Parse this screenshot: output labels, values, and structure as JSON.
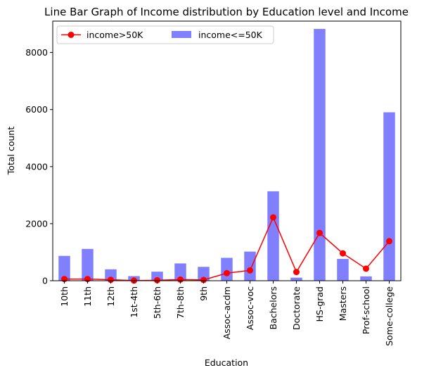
{
  "chart_data": {
    "type": "bar",
    "title": "Line Bar Graph of Income distribution by Education level and Income",
    "xlabel": "Education",
    "ylabel": "Total count",
    "ylim": [
      0,
      9100
    ],
    "yticks": [
      0,
      2000,
      4000,
      6000,
      8000
    ],
    "grid": false,
    "legend_position": "top-left",
    "categories": [
      "10th",
      "11th",
      "12th",
      "1st-4th",
      "5th-6th",
      "7th-8th",
      "9th",
      "Assoc-acdm",
      "Assoc-voc",
      "Bachelors",
      "Doctorate",
      "HS-grad",
      "Masters",
      "Prof-school",
      "Some-college"
    ],
    "series": [
      {
        "name": "income>50K",
        "type": "line",
        "color": "#ff0000",
        "marker": "circle",
        "values": [
          60,
          60,
          33,
          6,
          16,
          40,
          27,
          265,
          361,
          2221,
          306,
          1675,
          959,
          423,
          1387
        ]
      },
      {
        "name": "income<=50K",
        "type": "bar",
        "color": "#8080ff",
        "values": [
          871,
          1115,
          400,
          162,
          317,
          606,
          487,
          802,
          1021,
          3134,
          107,
          8826,
          764,
          153,
          5904
        ]
      }
    ]
  }
}
